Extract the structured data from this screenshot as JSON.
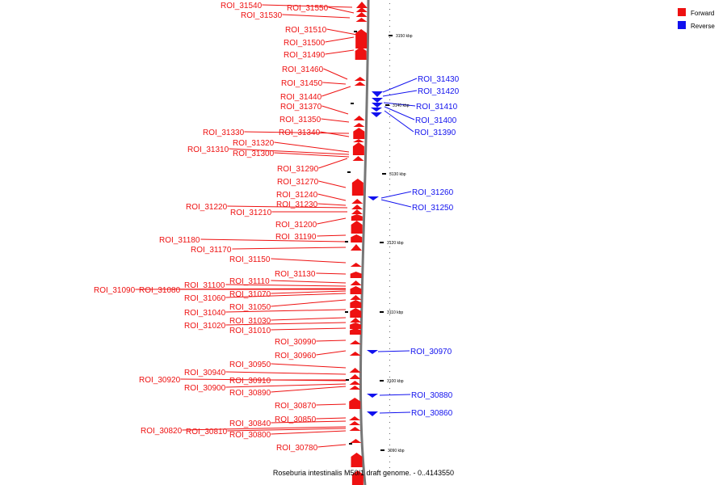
{
  "colors": {
    "forward": "#ee1111",
    "reverse": "#1111ee",
    "axis": "#888888",
    "tick": "#000000"
  },
  "legend": [
    {
      "label": "Forward",
      "color": "#ee1111"
    },
    {
      "label": "Reverse",
      "color": "#1111ee"
    }
  ],
  "caption": "Roseburia intestinalis M50/1 draft genome. - 0..4143550",
  "scale_ticks": [
    "3150 kbp",
    "3140 kbp",
    "3130 kbp",
    "3120 kbp",
    "3110 kbp",
    "3100 kbp",
    "3090 kbp"
  ],
  "forward_labels": [
    "ROI_31540",
    "ROI_31550",
    "ROI_31530",
    "ROI_31510",
    "ROI_31500",
    "ROI_31490",
    "ROI_31460",
    "ROI_31450",
    "ROI_31440",
    "ROI_31370",
    "ROI_31350",
    "ROI_31330",
    "ROI_31340",
    "ROI_31320",
    "ROI_31310",
    "ROI_31300",
    "ROI_31290",
    "ROI_31270",
    "ROI_31240",
    "ROI_31230",
    "ROI_31220",
    "ROI_31210",
    "ROI_31200",
    "ROI_31190",
    "ROI_31180",
    "ROI_31170",
    "ROI_31150",
    "ROI_31130",
    "ROI_31110",
    "ROI_31100",
    "ROI_31090",
    "ROI_31080",
    "ROI_31070",
    "ROI_31060",
    "ROI_31050",
    "ROI_31040",
    "ROI_31030",
    "ROI_31020",
    "ROI_31010",
    "ROI_30990",
    "ROI_30960",
    "ROI_30950",
    "ROI_30940",
    "ROI_30920",
    "ROI_30910",
    "ROI_30900",
    "ROI_30890",
    "ROI_30870",
    "ROI_30850",
    "ROI_30840",
    "ROI_30820",
    "ROI_30810",
    "ROI_30800",
    "ROI_30780"
  ],
  "reverse_labels": [
    "ROI_31430",
    "ROI_31420",
    "ROI_31410",
    "ROI_31400",
    "ROI_31390",
    "ROI_31260",
    "ROI_31250",
    "ROI_30970",
    "ROI_30880",
    "ROI_30860"
  ]
}
